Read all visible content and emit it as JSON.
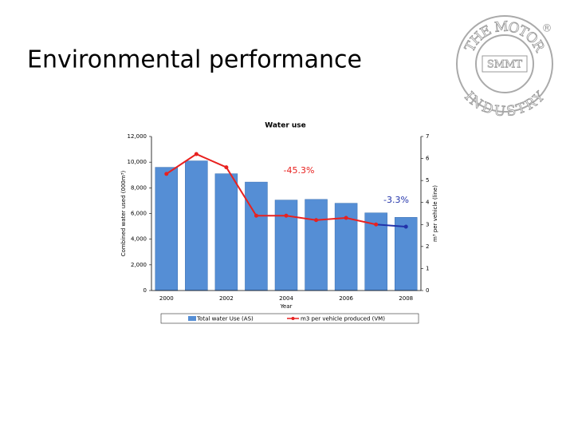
{
  "title": "Environmental performance",
  "logo": {
    "top": "THE MOTOR",
    "bottom": "INDUSTRY",
    "center": "SMMT",
    "mark": "®"
  },
  "chart_data": {
    "type": "bar-line",
    "title": "Water use",
    "x_label": "Year",
    "y_label": "Combined water used (000m³)",
    "y2_label": "m³ per vehicle (line)",
    "categories": [
      "2000",
      null,
      "2002",
      null,
      "2004",
      null,
      "2006",
      null,
      "2008"
    ],
    "series": [
      {
        "name": "Total water Use (AS)",
        "color": "#558ed5",
        "values": [
          9600,
          10100,
          9100,
          8450,
          7050,
          7100,
          6800,
          6050,
          5700
        ]
      },
      {
        "name": "m3 per vehicle produced (VM)",
        "color": "#e8211f",
        "axis": "y2",
        "values": [
          5.3,
          6.2,
          5.6,
          3.4,
          3.4,
          3.2,
          3.3,
          3.0,
          2.9
        ],
        "highlight": {
          "from": 7,
          "color": "#2233aa"
        }
      }
    ],
    "ylim": [
      0,
      12000
    ],
    "yticks": [
      0,
      {
        "value": 2000,
        "label": "2,000"
      },
      {
        "value": 4000,
        "label": "4,000"
      },
      {
        "value": 6000,
        "label": "6,000"
      },
      {
        "value": 8000,
        "label": "8,000"
      },
      {
        "value": 10000,
        "label": "10,000"
      },
      {
        "value": 12000,
        "label": "12,000"
      }
    ],
    "y2lim": [
      0,
      7
    ],
    "y2ticks": [
      0,
      1,
      2,
      3,
      4,
      5,
      6,
      7
    ],
    "annotations": [
      {
        "text": "-45.3%",
        "color": "#e8211f"
      },
      {
        "text": "-3.3%",
        "color": "#2233aa"
      }
    ],
    "legend": "bottom"
  }
}
